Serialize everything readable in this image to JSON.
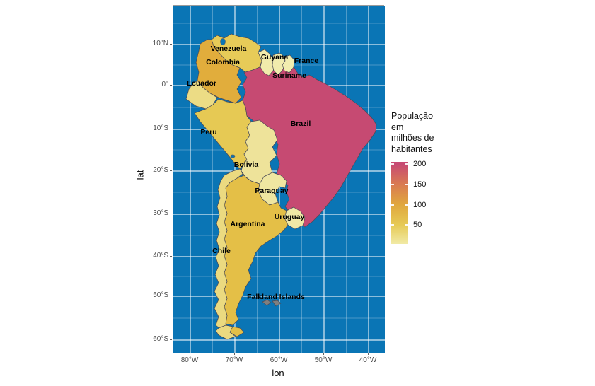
{
  "figure": {
    "background": "#ffffff"
  },
  "panel": {
    "ocean_color": "#0a75b5",
    "grid_major_color": "rgba(255,255,255,0.85)",
    "grid_minor_color": "rgba(255,255,255,0.35)",
    "border_color": "#9b9b9b"
  },
  "axes": {
    "x": {
      "title": "lon",
      "ticks": [
        "80°W",
        "70°W",
        "60°W",
        "50°W",
        "40°W"
      ]
    },
    "y": {
      "title": "lat",
      "ticks": [
        "10°N",
        "0°",
        "10°S",
        "20°S",
        "30°S",
        "40°S",
        "50°S",
        "60°S"
      ]
    }
  },
  "legend": {
    "title": "População\nem\nmilhões de\nhabitantes",
    "tick_labels": [
      "200",
      "150",
      "100",
      "50"
    ],
    "gradient_top_to_bottom": [
      "#c74a73",
      "#d97a52",
      "#e0a73d",
      "#e6ca55",
      "#f1eaa6"
    ],
    "na_color": "#7f7f7f"
  },
  "chart_data": {
    "type": "heatmap",
    "subtype": "choropleth-map",
    "region": "South America",
    "title": "",
    "xlabel": "lon",
    "ylabel": "lat",
    "x_ticks": [
      "80°W",
      "70°W",
      "60°W",
      "50°W",
      "40°W"
    ],
    "y_ticks": [
      "10°N",
      "0°",
      "10°S",
      "20°S",
      "30°S",
      "40°S",
      "50°S",
      "60°S"
    ],
    "xlim_deg": [
      -83.8,
      -36.3
    ],
    "ylim_deg": [
      -63.0,
      19.2
    ],
    "grid": "on",
    "legend_position": "right",
    "legend_title": "População em milhões de habitantes",
    "color_scale": {
      "min": 0,
      "max": 205,
      "breaks": [
        50,
        100,
        150,
        200
      ]
    },
    "countries": [
      {
        "id": "brazil",
        "label": "Brazil",
        "value_millions_approx": 200,
        "fill": "#c64a72"
      },
      {
        "id": "colombia",
        "label": "Colombia",
        "value_millions_approx": 48,
        "fill": "#e1ad3c"
      },
      {
        "id": "argentina",
        "label": "Argentina",
        "value_millions_approx": 43,
        "fill": "#e4bf47"
      },
      {
        "id": "peru",
        "label": "Peru",
        "value_millions_approx": 31,
        "fill": "#e6c954"
      },
      {
        "id": "venezuela",
        "label": "Venezuela",
        "value_millions_approx": 30,
        "fill": "#e7cb58"
      },
      {
        "id": "chile",
        "label": "Chile",
        "value_millions_approx": 18,
        "fill": "#ebda80"
      },
      {
        "id": "ecuador",
        "label": "Ecuador",
        "value_millions_approx": 16,
        "fill": "#ecdc85"
      },
      {
        "id": "bolivia",
        "label": "Bolivia",
        "value_millions_approx": 11,
        "fill": "#eee39a"
      },
      {
        "id": "paraguay",
        "label": "Paraguay",
        "value_millions_approx": 7,
        "fill": "#efe6a1"
      },
      {
        "id": "uruguay",
        "label": "Uruguay",
        "value_millions_approx": 3.4,
        "fill": "#f0e9a7"
      },
      {
        "id": "guyana",
        "label": "Guyana",
        "value_millions_approx": 0.8,
        "fill": "#f1ebab"
      },
      {
        "id": "suriname",
        "label": "Suriname",
        "value_millions_approx": 0.6,
        "fill": "#f1ecad"
      },
      {
        "id": "france",
        "label": "France",
        "value_millions_approx": 0.3,
        "fill": "#f2edaf"
      },
      {
        "id": "falkland",
        "label": "Falkland Islands",
        "value_millions_approx": null,
        "fill": "#7f7f7f"
      }
    ],
    "lakes": [
      "Lake Maracaibo",
      "Lake Titicaca"
    ]
  }
}
